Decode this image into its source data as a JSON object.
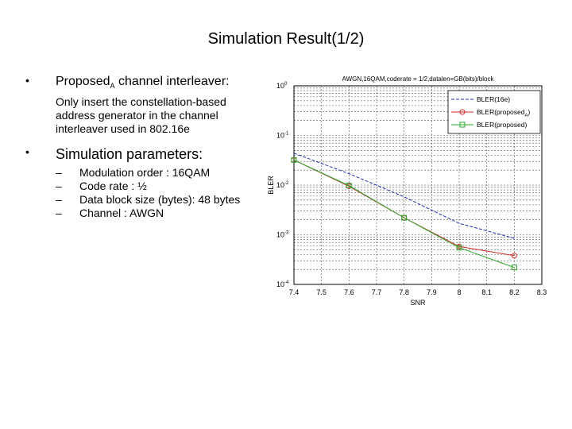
{
  "slide": {
    "title": "Simulation Result(1/2)",
    "bullets": [
      {
        "symbol": "•",
        "heading_main": "Proposed",
        "heading_sub": "A",
        "heading_rest": " channel interleaver:",
        "description": "Only insert the constellation-based address generator in the channel interleaver used in 802.16e"
      },
      {
        "symbol": "•",
        "heading": "Simulation parameters:",
        "items": [
          {
            "dash": "–",
            "text": "Modulation order : 16QAM"
          },
          {
            "dash": "–",
            "text": "Code rate : ½"
          },
          {
            "dash": "–",
            "text": "Data block size (bytes): 48 bytes"
          },
          {
            "dash": "–",
            "text": "Channel : AWGN"
          }
        ]
      }
    ]
  },
  "chart_data": {
    "type": "line",
    "title": "AWGN,16QAM,coderate = 1/2,datalen=GB(bits)/block",
    "xlabel": "SNR",
    "ylabel": "BLER",
    "xlim": [
      7.4,
      8.3
    ],
    "x_ticks": [
      7.4,
      7.5,
      7.6,
      7.7,
      7.8,
      7.9,
      8,
      8.1,
      8.2,
      8.3
    ],
    "x_tick_labels": [
      "7.4",
      "7.5",
      "7.6",
      "7.7",
      "7.8",
      "7.9",
      "8",
      "8.1",
      "8.2",
      "8.3"
    ],
    "y_scale": "log",
    "ylim": [
      0.0001,
      1
    ],
    "y_ticks": [
      1,
      0.1,
      0.01,
      0.001,
      0.0001
    ],
    "y_tick_labels": [
      {
        "base": "10",
        "exp": "0"
      },
      {
        "base": "10",
        "exp": "-1"
      },
      {
        "base": "10",
        "exp": "-2"
      },
      {
        "base": "10",
        "exp": "-3"
      },
      {
        "base": "10",
        "exp": "-4"
      }
    ],
    "grid": true,
    "legend_position": "top-right",
    "x": [
      7.4,
      7.6,
      7.8,
      8.0,
      8.2
    ],
    "series": [
      {
        "name": "BLER(16e)",
        "color": "#1f2fb5",
        "marker": "none",
        "dash": "4,2",
        "values": [
          0.044,
          0.017,
          0.0058,
          0.0017,
          0.00085
        ]
      },
      {
        "name": "BLER(proposed",
        "name_sub": "A",
        "name_end": ")",
        "color": "#d02a2a",
        "marker": "circle",
        "dash": "",
        "values": [
          0.032,
          0.0095,
          0.0022,
          0.00058,
          0.00038
        ]
      },
      {
        "name": "BLER(proposed)",
        "color": "#2aa82a",
        "marker": "square",
        "dash": "",
        "values": [
          0.032,
          0.0098,
          0.0022,
          0.00055,
          0.00022
        ]
      }
    ]
  }
}
